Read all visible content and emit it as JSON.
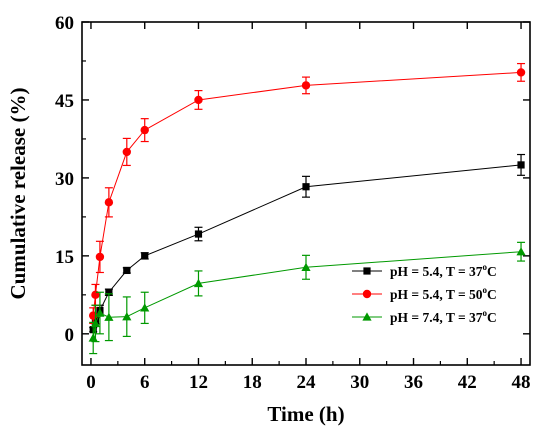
{
  "chart_data": {
    "type": "line",
    "xlabel": "Time (h)",
    "ylabel": "Cumulative release (%)",
    "xlim": [
      -1,
      49
    ],
    "ylim": [
      -6,
      60
    ],
    "xticks": [
      0,
      6,
      12,
      18,
      24,
      30,
      36,
      42,
      48
    ],
    "yticks": [
      0,
      15,
      30,
      45,
      60
    ],
    "legend_position": "lower-right",
    "series": [
      {
        "name": "pH = 5.4, T = 37",
        "name_sup": "o",
        "name_tail": "C",
        "color": "#000000",
        "marker": "square",
        "x": [
          0.25,
          0.5,
          1,
          2,
          4,
          6,
          12,
          24,
          48
        ],
        "y": [
          0.8,
          2.5,
          4.5,
          8.0,
          12.2,
          15.0,
          19.2,
          28.3,
          32.5
        ],
        "err": [
          0.4,
          0.6,
          1.0,
          0.6,
          0.5,
          0.6,
          1.3,
          2.0,
          2.0
        ]
      },
      {
        "name": "pH = 5.4, T = 50",
        "name_sup": "o",
        "name_tail": "C",
        "color": "#ff0000",
        "marker": "circle",
        "x": [
          0.25,
          0.5,
          1,
          2,
          4,
          6,
          12,
          24,
          48
        ],
        "y": [
          3.5,
          7.5,
          14.8,
          25.3,
          35.0,
          39.2,
          45.0,
          47.8,
          50.3
        ],
        "err": [
          1.5,
          2.0,
          3.0,
          2.8,
          2.6,
          2.2,
          1.8,
          1.6,
          1.7
        ]
      },
      {
        "name": "pH = 7.4, T = 37",
        "name_sup": "o",
        "name_tail": "C",
        "color": "#009900",
        "marker": "triangle",
        "x": [
          0.25,
          0.5,
          1,
          2,
          4,
          6,
          12,
          24,
          48
        ],
        "y": [
          -0.8,
          2.0,
          4.0,
          3.2,
          3.3,
          5.0,
          9.7,
          12.8,
          15.8
        ],
        "err": [
          3.0,
          3.5,
          4.0,
          4.5,
          3.8,
          3.0,
          2.4,
          2.3,
          1.8
        ]
      }
    ]
  }
}
